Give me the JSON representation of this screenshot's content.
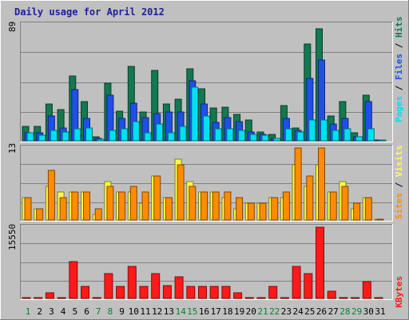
{
  "title": "Daily usage for April 2012",
  "colors": {
    "frame_bg": "#c0c0c0",
    "title": "#1e1e9a",
    "pages": "#00e0f0",
    "files": "#1e50e8",
    "hits": "#147850",
    "sites": "#ff8c00",
    "visits": "#ffff40",
    "kbytes": "#ff1a1a",
    "day_weekday": "#000000",
    "day_weekend": "#0a8030"
  },
  "chart_data": [
    {
      "type": "bar",
      "name": "hits-files-pages",
      "ymax_label": "89",
      "ylim": [
        0,
        89
      ],
      "legend": [
        "Pages",
        "Files",
        "Hits"
      ],
      "categories": [
        "1",
        "2",
        "3",
        "4",
        "5",
        "6",
        "7",
        "8",
        "9",
        "10",
        "11",
        "12",
        "13",
        "14",
        "15",
        "16",
        "17",
        "18",
        "19",
        "20",
        "21",
        "22",
        "23",
        "24",
        "25",
        "26",
        "27",
        "28",
        "29",
        "30",
        "31"
      ],
      "series": [
        {
          "name": "Hits",
          "color": "#147850",
          "values": [
            11,
            11,
            28,
            24,
            50,
            30,
            3,
            44,
            23,
            57,
            22,
            54,
            28,
            32,
            55,
            40,
            25,
            26,
            20,
            16,
            7,
            5,
            27,
            10,
            74,
            86,
            19,
            30,
            6,
            35,
            0
          ]
        },
        {
          "name": "Files",
          "color": "#1e50e8",
          "values": [
            6,
            6,
            19,
            10,
            39,
            17,
            2,
            35,
            17,
            29,
            18,
            21,
            22,
            22,
            46,
            28,
            14,
            18,
            15,
            7,
            5,
            2,
            17,
            8,
            48,
            62,
            13,
            17,
            3,
            30,
            0
          ]
        },
        {
          "name": "Pages",
          "color": "#00e0f0",
          "values": [
            6,
            4,
            8,
            7,
            9,
            10,
            1,
            8,
            9,
            15,
            6,
            13,
            6,
            11,
            41,
            19,
            9,
            9,
            8,
            5,
            4,
            2,
            9,
            7,
            16,
            16,
            8,
            9,
            3,
            9,
            0
          ]
        }
      ]
    },
    {
      "type": "bar",
      "name": "visits-sites",
      "ymax_label": "13",
      "ylim": [
        0,
        13
      ],
      "legend": [
        "Sites",
        "Visits"
      ],
      "categories": [
        "1",
        "2",
        "3",
        "4",
        "5",
        "6",
        "7",
        "8",
        "9",
        "10",
        "11",
        "12",
        "13",
        "14",
        "15",
        "16",
        "17",
        "18",
        "19",
        "20",
        "21",
        "22",
        "23",
        "24",
        "25",
        "26",
        "27",
        "28",
        "29",
        "30",
        "31"
      ],
      "series": [
        {
          "name": "Visits",
          "color": "#ffff40",
          "values": [
            4,
            2,
            6,
            5,
            5,
            5,
            1,
            7,
            5,
            5,
            3,
            8,
            4,
            11,
            7,
            5,
            5,
            4,
            2,
            3,
            3,
            4,
            4,
            10,
            6,
            10,
            5,
            7,
            2,
            4,
            0
          ]
        },
        {
          "name": "Sites",
          "color": "#ff8c00",
          "values": [
            4,
            2,
            9,
            4,
            5,
            5,
            2,
            6,
            5,
            6,
            5,
            8,
            4,
            10,
            6,
            5,
            5,
            5,
            4,
            3,
            3,
            4,
            5,
            13,
            8,
            13,
            5,
            6,
            3,
            4,
            0
          ]
        }
      ]
    },
    {
      "type": "bar",
      "name": "kbytes",
      "ymax_label": "15550",
      "ylim": [
        0,
        15550
      ],
      "legend": [
        "KBytes"
      ],
      "categories": [
        "1",
        "2",
        "3",
        "4",
        "5",
        "6",
        "7",
        "8",
        "9",
        "10",
        "11",
        "12",
        "13",
        "14",
        "15",
        "16",
        "17",
        "18",
        "19",
        "20",
        "21",
        "22",
        "23",
        "24",
        "25",
        "26",
        "27",
        "28",
        "29",
        "30",
        "31"
      ],
      "series": [
        {
          "name": "KBytes",
          "color": "#ff1a1a",
          "values": [
            0,
            0,
            1300,
            0,
            8000,
            2600,
            0,
            5500,
            2600,
            7000,
            2600,
            5500,
            2800,
            4800,
            2600,
            2600,
            2600,
            2600,
            1300,
            0,
            0,
            2600,
            0,
            7000,
            5500,
            15550,
            1500,
            0,
            0,
            3600,
            0
          ]
        }
      ]
    }
  ],
  "weekend_days": [
    "1",
    "7",
    "8",
    "14",
    "15",
    "21",
    "22",
    "28",
    "29"
  ]
}
